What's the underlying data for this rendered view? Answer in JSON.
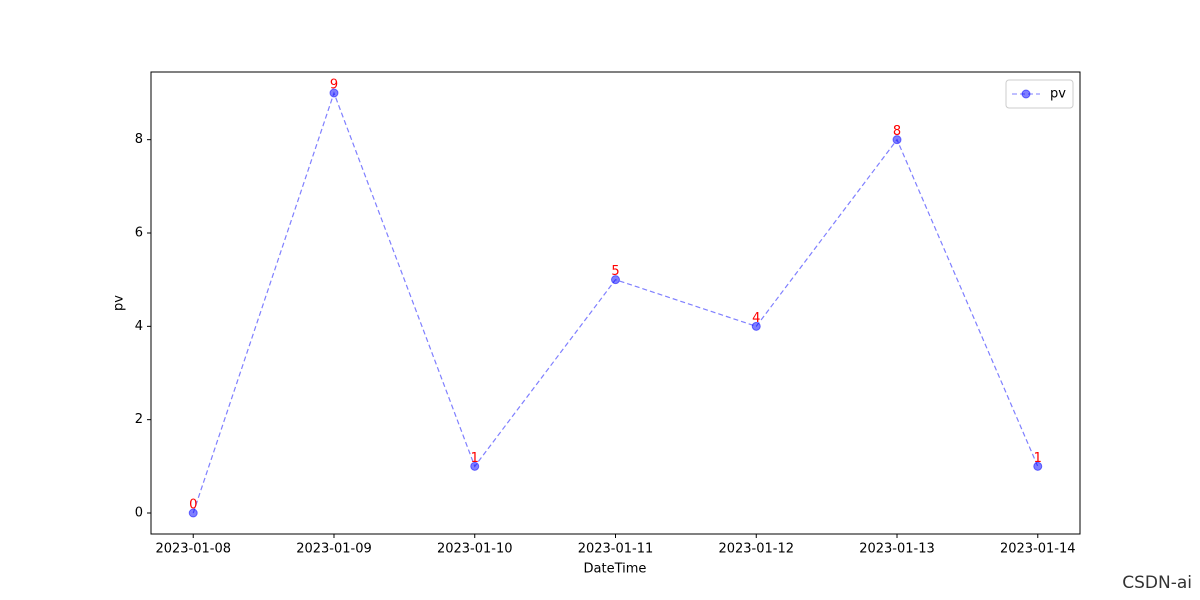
{
  "chart_data": {
    "type": "line",
    "x": [
      "2023-01-08",
      "2023-01-09",
      "2023-01-10",
      "2023-01-11",
      "2023-01-12",
      "2023-01-13",
      "2023-01-14"
    ],
    "series": [
      {
        "name": "pv",
        "color": "#0000ff",
        "values": [
          0,
          9,
          1,
          5,
          4,
          8,
          1
        ]
      }
    ],
    "xlabel": "DateTime",
    "ylabel": "pv",
    "xticks": [
      "2023-01-08",
      "2023-01-09",
      "2023-01-10",
      "2023-01-11",
      "2023-01-12",
      "2023-01-13",
      "2023-01-14"
    ],
    "ylim": [
      -0.45,
      9.45
    ],
    "yticks": [
      0,
      2,
      4,
      6,
      8
    ],
    "grid": false,
    "legend": "upper right",
    "label_color": "#ff0000",
    "watermark": "CSDN-ai"
  }
}
